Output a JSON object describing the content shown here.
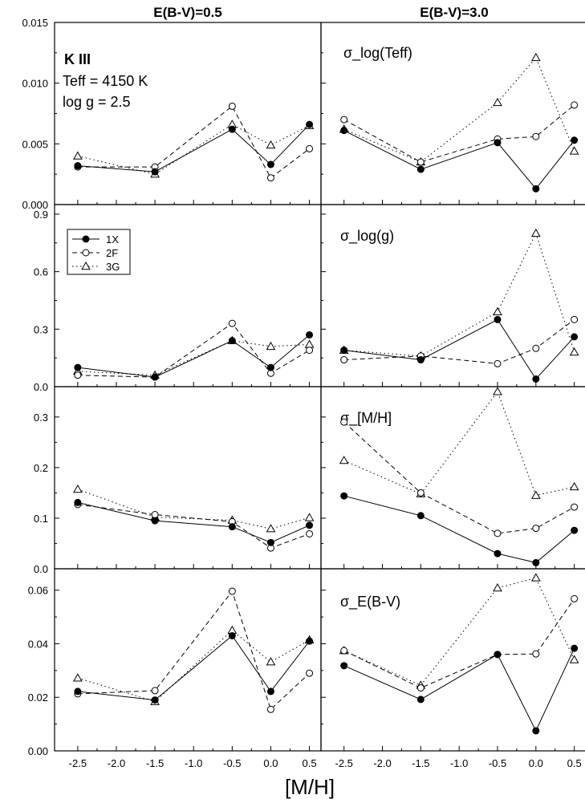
{
  "figure": {
    "column_titles": [
      "E(B-V)=0.5",
      "E(B-V)=3.0"
    ],
    "xlabel": "[M/H]",
    "star_label": "K III",
    "teff_label": "Teff = 4150 K",
    "logg_label": "log g = 2.5"
  },
  "legend": [
    {
      "name": "1X",
      "marker": "filled-circle",
      "line": "solid"
    },
    {
      "name": "2F",
      "marker": "open-circle",
      "line": "dashed"
    },
    {
      "name": "3G",
      "marker": "open-triangle",
      "line": "dotted"
    }
  ],
  "chart_data": [
    {
      "type": "line",
      "panel": "row1-left",
      "title": "",
      "xlim": [
        -2.8,
        0.65
      ],
      "ylim": [
        0,
        0.015
      ],
      "yticks": [
        "0.000",
        "0.005",
        "0.010",
        "0.015"
      ],
      "x": [
        -2.5,
        -1.5,
        -0.5,
        0.0,
        0.5
      ],
      "series": [
        {
          "name": "1X",
          "values": [
            0.0032,
            0.0027,
            0.0062,
            0.0033,
            0.0066
          ]
        },
        {
          "name": "2F",
          "values": [
            0.0031,
            0.0031,
            0.0081,
            0.0022,
            0.0046
          ]
        },
        {
          "name": "3G",
          "values": [
            0.004,
            0.0025,
            0.0066,
            0.0049,
            0.0065
          ]
        }
      ]
    },
    {
      "type": "line",
      "panel": "row1-right",
      "title": "σ_log(Teff)",
      "xlim": [
        -2.8,
        0.65
      ],
      "ylim": [
        0,
        0.015
      ],
      "yticks": [],
      "x": [
        -2.5,
        -1.5,
        -0.5,
        0.0,
        0.5
      ],
      "series": [
        {
          "name": "1X",
          "values": [
            0.0061,
            0.0029,
            0.0051,
            0.0013,
            0.0053
          ]
        },
        {
          "name": "2F",
          "values": [
            0.007,
            0.0035,
            0.0054,
            0.0056,
            0.0082
          ]
        },
        {
          "name": "3G",
          "values": [
            0.0062,
            0.0035,
            0.0084,
            0.0121,
            0.0044
          ]
        }
      ]
    },
    {
      "type": "line",
      "panel": "row2-left",
      "title": "",
      "xlim": [
        -2.8,
        0.65
      ],
      "ylim": [
        0,
        0.95
      ],
      "yticks": [
        "0.0",
        "0.3",
        "0.6",
        "0.9"
      ],
      "x": [
        -2.5,
        -1.5,
        -0.5,
        0.0,
        0.5
      ],
      "series": [
        {
          "name": "1X",
          "values": [
            0.1,
            0.05,
            0.24,
            0.1,
            0.27
          ]
        },
        {
          "name": "2F",
          "values": [
            0.06,
            0.05,
            0.33,
            0.07,
            0.19
          ]
        },
        {
          "name": "3G",
          "values": [
            0.08,
            0.06,
            0.24,
            0.21,
            0.22
          ]
        }
      ]
    },
    {
      "type": "line",
      "panel": "row2-right",
      "title": "σ_log(g)",
      "xlim": [
        -2.8,
        0.65
      ],
      "ylim": [
        0,
        0.95
      ],
      "yticks": [],
      "x": [
        -2.5,
        -1.5,
        -0.5,
        0.0,
        0.5
      ],
      "series": [
        {
          "name": "1X",
          "values": [
            0.19,
            0.14,
            0.35,
            0.04,
            0.26
          ]
        },
        {
          "name": "2F",
          "values": [
            0.14,
            0.16,
            0.12,
            0.2,
            0.35
          ]
        },
        {
          "name": "3G",
          "values": [
            0.19,
            0.16,
            0.39,
            0.8,
            0.18
          ]
        }
      ]
    },
    {
      "type": "line",
      "panel": "row3-left",
      "title": "",
      "xlim": [
        -2.8,
        0.65
      ],
      "ylim": [
        0,
        0.36
      ],
      "yticks": [
        "0.0",
        "0.1",
        "0.2",
        "0.3"
      ],
      "x": [
        -2.5,
        -1.5,
        -0.5,
        0.0,
        0.5
      ],
      "series": [
        {
          "name": "1X",
          "values": [
            0.131,
            0.095,
            0.083,
            0.052,
            0.086
          ]
        },
        {
          "name": "2F",
          "values": [
            0.127,
            0.107,
            0.093,
            0.041,
            0.069
          ]
        },
        {
          "name": "3G",
          "values": [
            0.157,
            0.102,
            0.096,
            0.079,
            0.101
          ]
        }
      ]
    },
    {
      "type": "line",
      "panel": "row3-right",
      "title": "σ_[M/H]",
      "xlim": [
        -2.8,
        0.65
      ],
      "ylim": [
        0,
        0.36
      ],
      "yticks": [],
      "x": [
        -2.5,
        -1.5,
        -0.5,
        0.0,
        0.5
      ],
      "series": [
        {
          "name": "1X",
          "values": [
            0.144,
            0.105,
            0.03,
            0.012,
            0.076
          ]
        },
        {
          "name": "2F",
          "values": [
            0.29,
            0.15,
            0.07,
            0.08,
            0.122
          ]
        },
        {
          "name": "3G",
          "values": [
            0.214,
            0.148,
            0.35,
            0.145,
            0.162
          ]
        }
      ]
    },
    {
      "type": "line",
      "panel": "row4-left",
      "title": "",
      "xlim": [
        -2.8,
        0.65
      ],
      "ylim": [
        0,
        0.068
      ],
      "yticks": [
        "0.00",
        "0.02",
        "0.04",
        "0.06"
      ],
      "x": [
        -2.5,
        -1.5,
        -0.5,
        0.0,
        0.5
      ],
      "series": [
        {
          "name": "1X",
          "values": [
            0.0222,
            0.019,
            0.043,
            0.0222,
            0.041
          ]
        },
        {
          "name": "2F",
          "values": [
            0.0213,
            0.0225,
            0.0596,
            0.0155,
            0.029
          ]
        },
        {
          "name": "3G",
          "values": [
            0.0272,
            0.0184,
            0.045,
            0.0332,
            0.0414
          ]
        }
      ]
    },
    {
      "type": "line",
      "panel": "row4-right",
      "title": "σ_E(B-V)",
      "xlim": [
        -2.8,
        0.65
      ],
      "ylim": [
        0,
        0.068
      ],
      "yticks": [],
      "x": [
        -2.5,
        -1.5,
        -0.5,
        0.0,
        0.5
      ],
      "series": [
        {
          "name": "1X",
          "values": [
            0.0318,
            0.0192,
            0.036,
            0.0075,
            0.0383
          ]
        },
        {
          "name": "2F",
          "values": [
            0.0374,
            0.0235,
            0.036,
            0.0362,
            0.0568
          ]
        },
        {
          "name": "3G",
          "values": [
            0.0374,
            0.0245,
            0.0608,
            0.0646,
            0.034
          ]
        }
      ]
    }
  ],
  "xticks": [
    "-2.5",
    "-2.0",
    "-1.5",
    "-1.0",
    "-0.5",
    "0.0",
    "0.5"
  ]
}
